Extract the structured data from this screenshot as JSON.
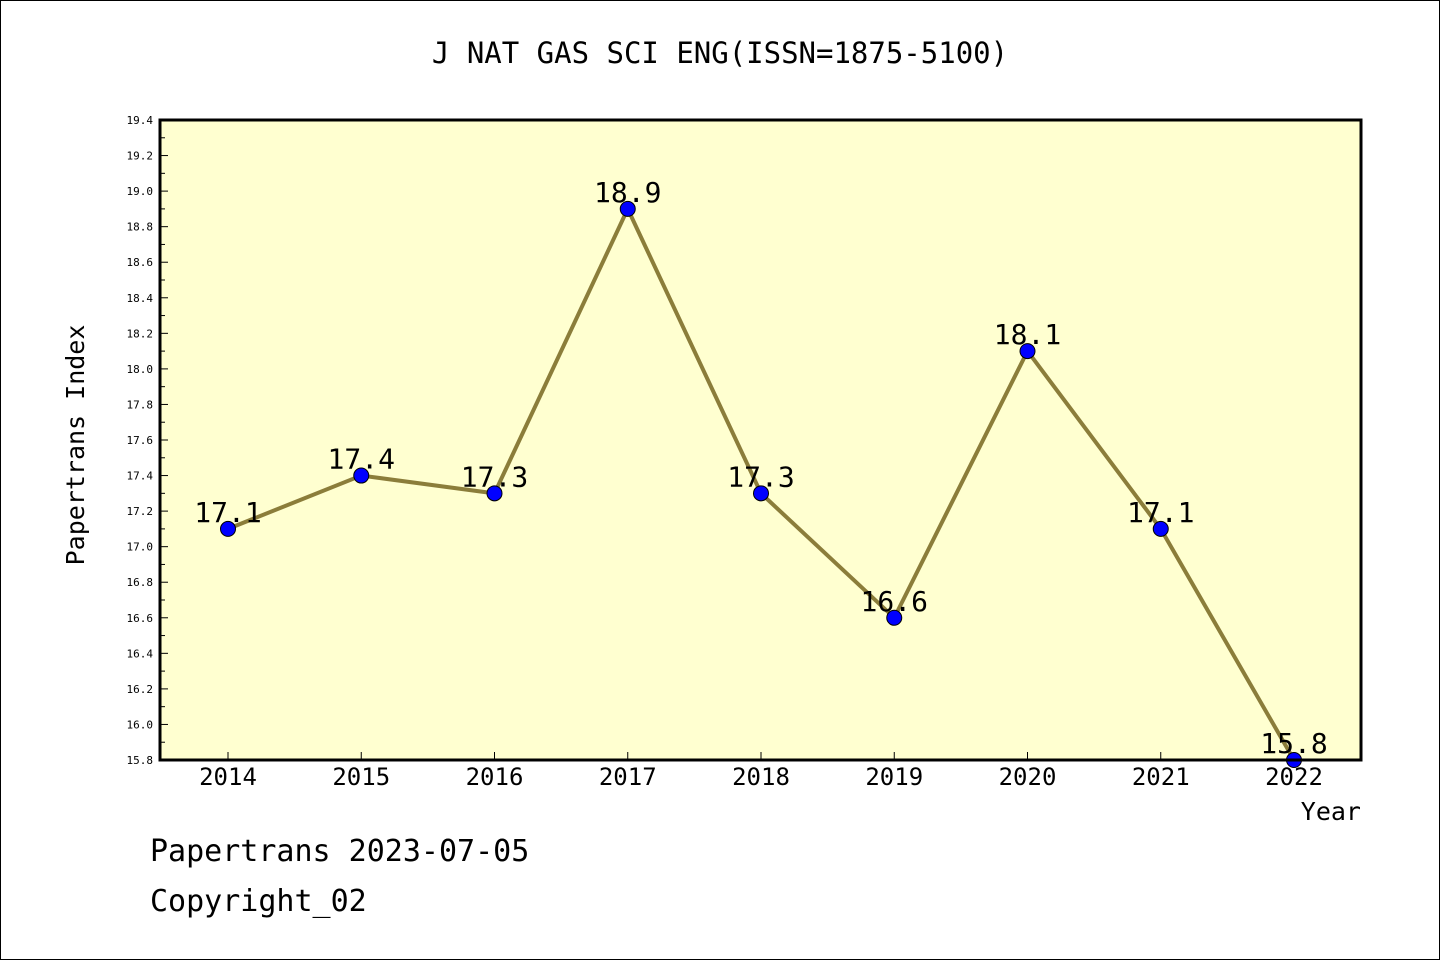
{
  "chart_data": {
    "type": "line",
    "title": "J NAT GAS SCI ENG(ISSN=1875-5100)",
    "xlabel": "Year",
    "ylabel": "Papertrans Index",
    "categories": [
      "2014",
      "2015",
      "2016",
      "2017",
      "2018",
      "2019",
      "2020",
      "2021",
      "2022"
    ],
    "series": [
      {
        "values": [
          17.1,
          17.4,
          17.3,
          18.9,
          17.3,
          16.6,
          18.1,
          17.1,
          15.8
        ]
      }
    ],
    "data_labels": [
      "17.1",
      "17.4",
      "17.3",
      "18.9",
      "17.3",
      "16.6",
      "18.1",
      "17.1",
      "15.8"
    ],
    "ylim": [
      15.8,
      19.4
    ],
    "y_ticks": [
      "15.8",
      "16.0",
      "16.2",
      "16.4",
      "16.6",
      "16.8",
      "17.0",
      "17.2",
      "17.4",
      "17.6",
      "17.8",
      "18.0",
      "18.2",
      "18.4",
      "18.6",
      "18.8",
      "19.0",
      "19.2",
      "19.4"
    ],
    "grid": false,
    "colors": {
      "line": "#8b7d3a",
      "marker": "#0000ff",
      "plot_background": "#ffffd0"
    }
  },
  "footer": {
    "source": "Papertrans 2023-07-05",
    "copyright": "Copyright_02"
  }
}
